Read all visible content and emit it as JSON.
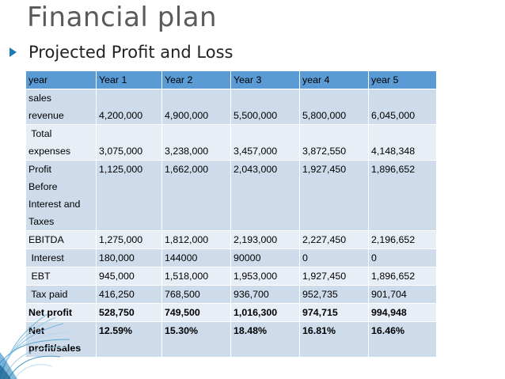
{
  "slide": {
    "title": "Financial plan",
    "subtitle": "Projected Profit and Loss"
  },
  "table": {
    "headers": [
      "year",
      "Year 1",
      "Year 2",
      "Year 3",
      "year 4",
      "year 5"
    ],
    "rows": [
      {
        "label_lines": [
          "sales",
          "revenue"
        ],
        "values": [
          "4,200,000",
          "4,900,000",
          "5,500,000",
          "5,800,000",
          "6,045,000"
        ]
      },
      {
        "label_lines": [
          " Total",
          "expenses"
        ],
        "values": [
          "3,075,000",
          "3,238,000",
          "3,457,000",
          "3,872,550",
          "4,148,348"
        ]
      },
      {
        "label_lines": [
          "Profit",
          "Before",
          "Interest and",
          "Taxes"
        ],
        "values": [
          "1,125,000",
          "1,662,000",
          "2,043,000",
          "1,927,450",
          "1,896,652"
        ]
      },
      {
        "label_lines": [
          "EBITDA"
        ],
        "values": [
          "1,275,000",
          "1,812,000",
          "2,193,000",
          "2,227,450",
          "2,196,652"
        ]
      },
      {
        "label_lines": [
          " Interest"
        ],
        "values": [
          "180,000",
          "144000",
          "90000",
          "0",
          "0"
        ]
      },
      {
        "label_lines": [
          " EBT"
        ],
        "values": [
          "945,000",
          "1,518,000",
          "1,953,000",
          "1,927,450",
          "1,896,652"
        ]
      },
      {
        "label_lines": [
          " Tax paid"
        ],
        "values": [
          "416,250",
          "768,500",
          "936,700",
          "952,735",
          "901,704"
        ]
      },
      {
        "label_lines": [
          "Net profit"
        ],
        "values": [
          "528,750",
          "749,500",
          "1,016,300",
          "974,715",
          "994,948"
        ]
      },
      {
        "label_lines": [
          "Net",
          "profit/sales"
        ],
        "values": [
          "12.59%",
          "15.30%",
          "18.48%",
          "16.81%",
          "16.46%"
        ]
      }
    ]
  },
  "colors": {
    "header_bg": "#5b9bd5",
    "row_odd": "#cddbea",
    "row_even": "#e8eef6",
    "accent": "#1b7bb8",
    "title_text": "#5a5a5a"
  }
}
